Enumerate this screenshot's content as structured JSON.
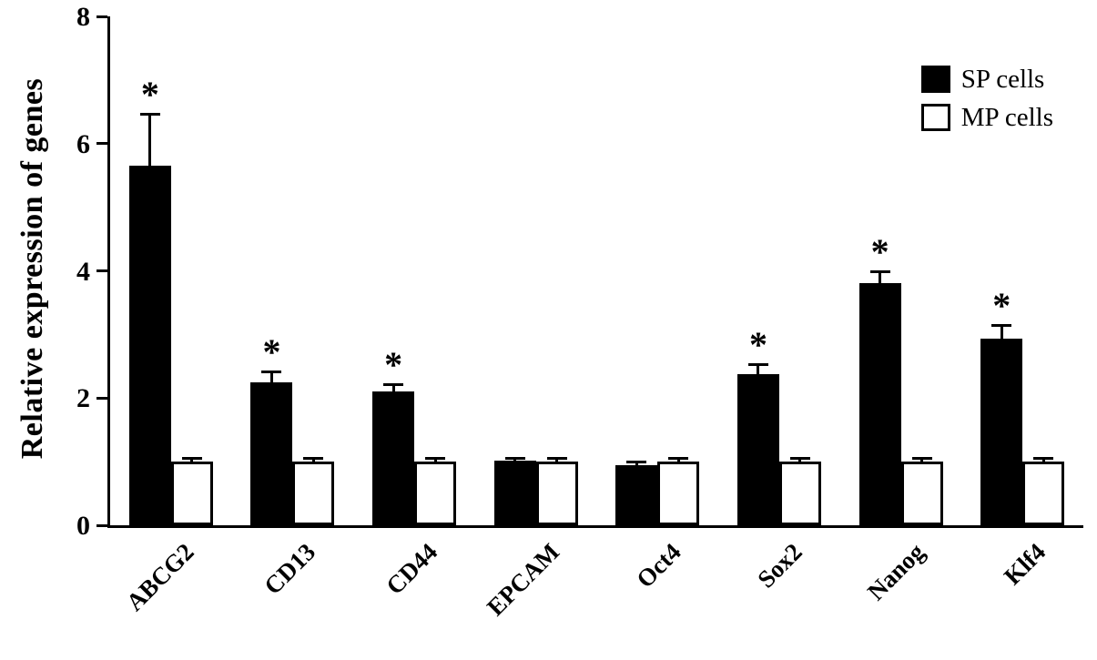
{
  "chart_data": {
    "type": "bar",
    "title": "",
    "ylabel": "Relative expression of genes",
    "xlabel": "",
    "ylim": [
      0,
      8
    ],
    "yticks": [
      0,
      2,
      4,
      6,
      8
    ],
    "grid": false,
    "legend_position": "top-right",
    "significance_marker": "*",
    "categories": [
      "ABCG2",
      "CD13",
      "CD44",
      "EPCAM",
      "Oct4",
      "Sox2",
      "Nanog",
      "Klf4"
    ],
    "series": [
      {
        "name": "SP cells",
        "fill": "#000000",
        "values": [
          5.65,
          2.25,
          2.1,
          1.02,
          0.95,
          2.37,
          3.8,
          2.93
        ],
        "errors": [
          0.8,
          0.15,
          0.1,
          0.03,
          0.04,
          0.15,
          0.18,
          0.2
        ],
        "significant": [
          true,
          true,
          true,
          false,
          false,
          true,
          true,
          true
        ]
      },
      {
        "name": "MP cells",
        "fill": "#ffffff",
        "values": [
          1.0,
          1.0,
          1.0,
          1.0,
          1.0,
          1.0,
          1.0,
          1.0
        ],
        "errors": [
          0.05,
          0.05,
          0.05,
          0.05,
          0.05,
          0.05,
          0.05,
          0.05
        ],
        "significant": [
          false,
          false,
          false,
          false,
          false,
          false,
          false,
          false
        ]
      }
    ]
  },
  "colors": {
    "axis": "#000000",
    "background": "#ffffff"
  }
}
